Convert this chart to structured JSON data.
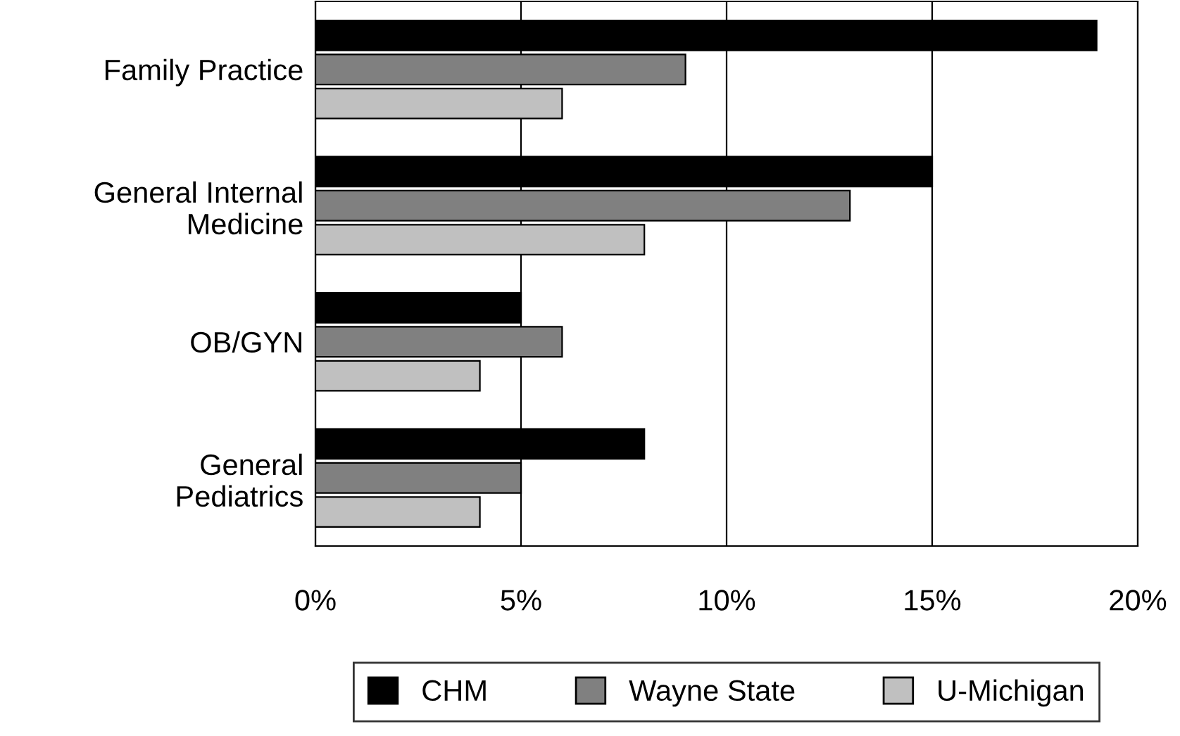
{
  "chart_data": {
    "type": "bar",
    "orientation": "horizontal",
    "categories": [
      "Family Practice",
      "General Internal\nMedicine",
      "OB/GYN",
      "General\nPediatrics"
    ],
    "series": [
      {
        "name": "CHM",
        "color": "#000000",
        "values": [
          19,
          15,
          5,
          8
        ]
      },
      {
        "name": "Wayne State",
        "color": "#808080",
        "values": [
          9,
          13,
          6,
          5
        ]
      },
      {
        "name": "U-Michigan",
        "color": "#c0c0c0",
        "values": [
          6,
          8,
          4,
          4
        ]
      }
    ],
    "xlim": [
      0,
      20
    ],
    "xticks": [
      {
        "value": 0,
        "label": "0%"
      },
      {
        "value": 5,
        "label": "5%"
      },
      {
        "value": 10,
        "label": "10%"
      },
      {
        "value": 15,
        "label": "15%"
      },
      {
        "value": 20,
        "label": "20%"
      }
    ],
    "grid": "x",
    "legend": "bottom"
  }
}
